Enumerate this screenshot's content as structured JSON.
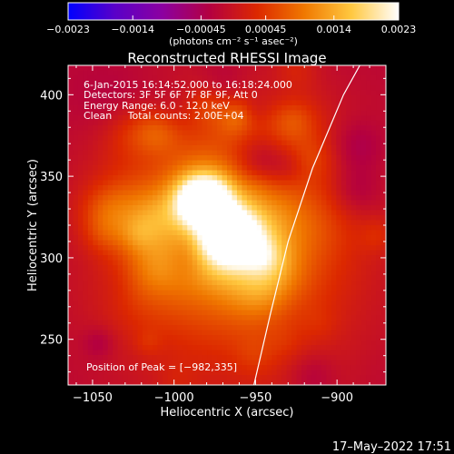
{
  "chart_data": {
    "type": "heatmap",
    "title": "Reconstructed RHESSI Image",
    "xlabel": "Heliocentric X (arcsec)",
    "ylabel": "Heliocentric Y (arcsec)",
    "xlim": [
      -1065,
      -870
    ],
    "ylim": [
      222,
      418
    ],
    "x_ticks": [
      -1050,
      -1000,
      -950,
      -900
    ],
    "x_tick_labels": [
      "−1050",
      "−1000",
      "−950",
      "−900"
    ],
    "y_ticks": [
      250,
      300,
      350,
      400
    ],
    "y_tick_labels": [
      "250",
      "300",
      "350",
      "400"
    ],
    "colorbar": {
      "range": [
        -0.0023,
        0.0023
      ],
      "tick_values": [
        -0.0023,
        -0.0014,
        -0.00045,
        0.00045,
        0.0014,
        0.0023
      ],
      "tick_labels": [
        "−0.0023",
        "−0.0014",
        "−0.00045",
        "0.00045",
        "0.0014",
        "0.0023"
      ],
      "units_label": "(photons cm⁻² s⁻¹ asec⁻²)",
      "colormap": [
        "#0000ff",
        "#5a00c8",
        "#8c00a0",
        "#b40040",
        "#dc2800",
        "#f07800",
        "#ffc840",
        "#ffffff"
      ]
    },
    "annotations": [
      "6-Jan-2015 16:14:52.000 to 16:18:24.000",
      "Detectors: 3F 5F 6F 7F 8F 9F, Att 0",
      "Energy Range: 6.0 - 12.0 keV",
      "Clean     Total counts: 2.00E+04"
    ],
    "peak_label": "Position of Peak = [−982,335]",
    "peak": {
      "x": -982,
      "y": 335
    },
    "secondary_peak": {
      "x": -965,
      "y": 313
    },
    "limb": [
      [
        -951,
        222
      ],
      [
        -941,
        265
      ],
      [
        -930,
        310
      ],
      [
        -915,
        355
      ],
      [
        -896,
        400
      ],
      [
        -886,
        418
      ]
    ]
  },
  "footer": {
    "timestamp": "17–May–2022 17:51"
  }
}
